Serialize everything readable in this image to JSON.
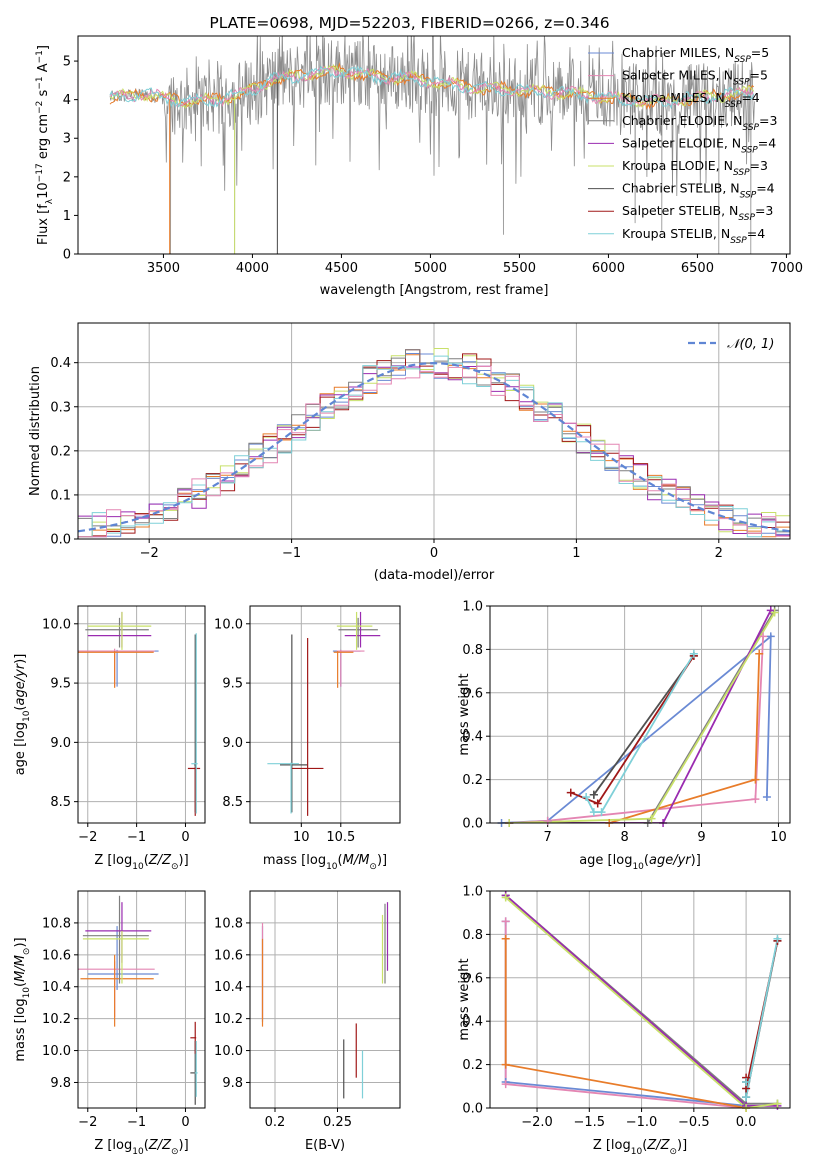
{
  "figure_title": "PLATE=0698, MJD=52203, FIBERID=0266, z=0.346",
  "colors": {
    "Chabrier MILES": "#6a8ad4",
    "Salpeter MILES": "#e486b3",
    "Kroupa MILES": "#e87c2a",
    "Chabrier ELODIE": "#7f7f7f",
    "Salpeter ELODIE": "#9a2bb0",
    "Kroupa ELODIE": "#c8e06a",
    "Chabrier STELIB": "#505050",
    "Salpeter STELIB": "#a01818",
    "Kroupa STELIB": "#7fd0d8",
    "normal": "#5f86d4",
    "grid": "#b0b0b0"
  },
  "chart_data": [
    {
      "type": "line",
      "title": "PLATE=0698, MJD=52203, FIBERID=0266, z=0.346",
      "xlabel": "wavelength [Angstrom, rest frame]",
      "ylabel": "Flux [fλ 10^-17 erg cm^-2 s^-1 A^-1]",
      "xlim": [
        3020,
        7020
      ],
      "ylim": [
        0,
        5.65
      ],
      "xticks": [
        3500,
        4000,
        4500,
        5000,
        5500,
        6000,
        6500,
        7000
      ],
      "yticks": [
        0,
        1,
        2,
        3,
        4,
        5
      ],
      "grid": false,
      "legend_position": "top-right",
      "series": [
        {
          "name": "Chabrier MILES, N_SSP=5"
        },
        {
          "name": "Salpeter MILES, N_SSP=5"
        },
        {
          "name": "Kroupa MILES, N_SSP=4"
        },
        {
          "name": "Chabrier ELODIE, N_SSP=3"
        },
        {
          "name": "Salpeter ELODIE, N_SSP=4"
        },
        {
          "name": "Kroupa ELODIE, N_SSP=3"
        },
        {
          "name": "Chabrier STELIB, N_SSP=4"
        },
        {
          "name": "Salpeter STELIB, N_SSP=3"
        },
        {
          "name": "Kroupa STELIB, N_SSP=4"
        }
      ],
      "data_range_x": [
        3200,
        6820
      ],
      "continuum": [
        [
          3200,
          4.05
        ],
        [
          3400,
          4.15
        ],
        [
          3600,
          3.95
        ],
        [
          3800,
          4.0
        ],
        [
          3950,
          4.15
        ],
        [
          4100,
          4.5
        ],
        [
          4300,
          4.65
        ],
        [
          4500,
          4.75
        ],
        [
          4700,
          4.6
        ],
        [
          4900,
          4.55
        ],
        [
          5100,
          4.4
        ],
        [
          5300,
          4.3
        ],
        [
          5500,
          4.25
        ],
        [
          5700,
          4.2
        ],
        [
          5900,
          4.1
        ],
        [
          6100,
          4.0
        ],
        [
          6300,
          3.95
        ],
        [
          6500,
          4.05
        ],
        [
          6700,
          4.15
        ],
        [
          6820,
          4.2
        ]
      ],
      "deep_spikes": [
        [
          3540,
          0
        ],
        [
          3900,
          0
        ],
        [
          4140,
          0
        ],
        [
          5410,
          0.5
        ],
        [
          6150,
          0.8
        ],
        [
          6300,
          0.6
        ],
        [
          6620,
          0
        ],
        [
          6800,
          0
        ]
      ]
    },
    {
      "type": "bar",
      "xlabel": "(data-model)/error",
      "ylabel": "Normed distribution",
      "xlim": [
        -2.5,
        2.5
      ],
      "ylim": [
        0,
        0.49
      ],
      "xticks": [
        -2,
        -1,
        0,
        1,
        2
      ],
      "yticks": [
        0.0,
        0.1,
        0.2,
        0.3,
        0.4
      ],
      "grid": true,
      "legend_position": "top-right",
      "legend": "𝒩(0, 1)",
      "reference_curve": "normal(0,1)",
      "bin_width": 0.1
    },
    {
      "type": "scatter",
      "xlabel": "Z [log10(Z/Z⊙)]",
      "ylabel": "age  [log10(age/yr)]",
      "xlim": [
        -2.2,
        0.4
      ],
      "ylim": [
        8.32,
        10.15
      ],
      "xticks": [
        -2,
        -1,
        0
      ],
      "yticks": [
        8.5,
        9.0,
        9.5,
        10.0
      ],
      "grid": true,
      "points": [
        {
          "s": "Chabrier MILES",
          "x": -1.4,
          "xerr": [
            0.8,
            0.85
          ],
          "y": 9.77,
          "yerr": [
            0.3,
            0.01
          ]
        },
        {
          "s": "Salpeter MILES",
          "x": -1.45,
          "xerr": [
            0.8,
            0.82
          ],
          "y": 9.77,
          "yerr": [
            0.3,
            0.02
          ]
        },
        {
          "s": "Kroupa MILES",
          "x": -1.45,
          "xerr": [
            0.75,
            0.8
          ],
          "y": 9.76,
          "yerr": [
            0.3,
            0.01
          ]
        },
        {
          "s": "Chabrier ELODIE",
          "x": -1.35,
          "xerr": [
            0.7,
            0.6
          ],
          "y": 9.95,
          "yerr": [
            0.15,
            0.1
          ]
        },
        {
          "s": "Salpeter ELODIE",
          "x": -1.3,
          "xerr": [
            0.7,
            0.6
          ],
          "y": 9.9,
          "yerr": [
            0.1,
            0.2
          ]
        },
        {
          "s": "Kroupa ELODIE",
          "x": -1.3,
          "xerr": [
            0.7,
            0.6
          ],
          "y": 9.98,
          "yerr": [
            0.2,
            0.12
          ]
        },
        {
          "s": "Chabrier STELIB",
          "x": 0.2,
          "xerr": [
            0.02,
            0.02
          ],
          "y": 8.81,
          "yerr": [
            0.4,
            1.1
          ]
        },
        {
          "s": "Salpeter STELIB",
          "x": 0.2,
          "xerr": [
            0.15,
            0.1
          ],
          "y": 8.78,
          "yerr": [
            0.4,
            0.01
          ]
        },
        {
          "s": "Kroupa STELIB",
          "x": 0.22,
          "xerr": [
            0.1,
            0.03
          ],
          "y": 8.82,
          "yerr": [
            0.42,
            1.1
          ]
        }
      ]
    },
    {
      "type": "scatter",
      "xlabel": "mass [log10(M/M⊙)]",
      "ylabel": "",
      "xlim": [
        9.35,
        11.25
      ],
      "ylim": [
        8.32,
        10.15
      ],
      "xticks": [
        10.0,
        10.5
      ],
      "yticks": [
        8.5,
        9.0,
        9.5,
        10.0
      ],
      "grid": true,
      "points": [
        {
          "s": "Chabrier MILES",
          "x": 10.5,
          "xerr": [
            0.1,
            0.25
          ],
          "y": 9.77,
          "yerr": [
            0.3,
            0.01
          ]
        },
        {
          "s": "Salpeter MILES",
          "x": 10.5,
          "xerr": [
            0.05,
            0.3
          ],
          "y": 9.77,
          "yerr": [
            0.3,
            0.01
          ]
        },
        {
          "s": "Kroupa MILES",
          "x": 10.46,
          "xerr": [
            0.05,
            0.2
          ],
          "y": 9.76,
          "yerr": [
            0.3,
            0.01
          ]
        },
        {
          "s": "Chabrier ELODIE",
          "x": 10.72,
          "xerr": [
            0.25,
            0.25
          ],
          "y": 9.95,
          "yerr": [
            0.15,
            0.1
          ]
        },
        {
          "s": "Salpeter ELODIE",
          "x": 10.75,
          "xerr": [
            0.2,
            0.25
          ],
          "y": 9.9,
          "yerr": [
            0.1,
            0.2
          ]
        },
        {
          "s": "Kroupa ELODIE",
          "x": 10.7,
          "xerr": [
            0.25,
            0.2
          ],
          "y": 9.98,
          "yerr": [
            0.2,
            0.12
          ]
        },
        {
          "s": "Chabrier STELIB",
          "x": 9.88,
          "xerr": [
            0.15,
            0.2
          ],
          "y": 8.81,
          "yerr": [
            0.4,
            1.1
          ]
        },
        {
          "s": "Salpeter STELIB",
          "x": 10.08,
          "xerr": [
            0.2,
            0.2
          ],
          "y": 8.78,
          "yerr": [
            0.4,
            1.1
          ]
        },
        {
          "s": "Kroupa STELIB",
          "x": 9.87,
          "xerr": [
            0.3,
            0.1
          ],
          "y": 8.82,
          "yerr": [
            0.42,
            0.01
          ]
        }
      ]
    },
    {
      "type": "line",
      "xlabel": "age  [log10(age/yr)]",
      "ylabel": "mass weight",
      "xlim": [
        6.25,
        10.15
      ],
      "ylim": [
        0,
        1.0
      ],
      "xticks": [
        7,
        8,
        9,
        10
      ],
      "yticks": [
        0.0,
        0.2,
        0.4,
        0.6,
        0.8,
        1.0
      ],
      "grid": true,
      "series": [
        {
          "s": "Chabrier MILES",
          "x": [
            6.4,
            7.0,
            9.9,
            9.85
          ],
          "y": [
            0.0,
            0.01,
            0.86,
            0.12
          ]
        },
        {
          "s": "Salpeter MILES",
          "x": [
            6.5,
            7.0,
            9.7,
            9.8
          ],
          "y": [
            0.0,
            0.01,
            0.11,
            0.86
          ]
        },
        {
          "s": "Kroupa MILES",
          "x": [
            6.5,
            7.8,
            9.7,
            9.75
          ],
          "y": [
            0.0,
            0.0,
            0.2,
            0.78
          ]
        },
        {
          "s": "Chabrier ELODIE",
          "x": [
            6.5,
            8.3,
            9.95
          ],
          "y": [
            0.0,
            0.0,
            0.98
          ]
        },
        {
          "s": "Salpeter ELODIE",
          "x": [
            6.5,
            8.5,
            9.9
          ],
          "y": [
            0.0,
            0.0,
            0.98
          ]
        },
        {
          "s": "Kroupa ELODIE",
          "x": [
            6.5,
            8.35,
            9.95
          ],
          "y": [
            0.0,
            0.02,
            0.97
          ]
        },
        {
          "s": "Chabrier STELIB",
          "x": [
            7.6,
            7.6,
            8.9
          ],
          "y": [
            0.13,
            0.13,
            0.77
          ]
        },
        {
          "s": "Salpeter STELIB",
          "x": [
            7.3,
            7.65,
            8.9
          ],
          "y": [
            0.14,
            0.09,
            0.77
          ]
        },
        {
          "s": "Kroupa STELIB",
          "x": [
            7.5,
            7.6,
            7.7,
            8.9
          ],
          "y": [
            0.12,
            0.05,
            0.05,
            0.78
          ]
        }
      ]
    },
    {
      "type": "scatter",
      "xlabel": "Z [log10(Z/Z⊙)]",
      "ylabel": "mass [log10(M/M⊙)]",
      "xlim": [
        -2.2,
        0.4
      ],
      "ylim": [
        9.64,
        11.0
      ],
      "xticks": [
        -2,
        -1,
        0
      ],
      "yticks": [
        9.8,
        10.0,
        10.2,
        10.4,
        10.6,
        10.8
      ],
      "grid": true,
      "points": [
        {
          "s": "Chabrier MILES",
          "x": -1.4,
          "xerr": [
            0.6,
            0.85
          ],
          "y": 10.48,
          "yerr": [
            0.1,
            0.3
          ]
        },
        {
          "s": "Salpeter MILES",
          "x": -1.45,
          "xerr": [
            0.8,
            0.82
          ],
          "y": 10.51,
          "yerr": [
            0.3,
            0.05
          ]
        },
        {
          "s": "Kroupa MILES",
          "x": -1.45,
          "xerr": [
            0.7,
            0.8
          ],
          "y": 10.45,
          "yerr": [
            0.3,
            0.15
          ]
        },
        {
          "s": "Chabrier ELODIE",
          "x": -1.35,
          "xerr": [
            0.75,
            0.6
          ],
          "y": 10.72,
          "yerr": [
            0.3,
            0.25
          ]
        },
        {
          "s": "Salpeter ELODIE",
          "x": -1.3,
          "xerr": [
            0.75,
            0.6
          ],
          "y": 10.75,
          "yerr": [
            0.2,
            0.18
          ]
        },
        {
          "s": "Kroupa ELODIE",
          "x": -1.3,
          "xerr": [
            0.8,
            0.55
          ],
          "y": 10.7,
          "yerr": [
            0.28,
            0.05
          ]
        },
        {
          "s": "Chabrier STELIB",
          "x": 0.2,
          "xerr": [
            0.1,
            0.02
          ],
          "y": 9.86,
          "yerr": [
            0.2,
            0.2
          ]
        },
        {
          "s": "Salpeter STELIB",
          "x": 0.2,
          "xerr": [
            0.1,
            0.02
          ],
          "y": 10.08,
          "yerr": [
            0.1,
            0.1
          ]
        },
        {
          "s": "Kroupa STELIB",
          "x": 0.22,
          "xerr": [
            0.03,
            0.03
          ],
          "y": 9.86,
          "yerr": [
            0.15,
            0.2
          ]
        }
      ]
    },
    {
      "type": "scatter",
      "xlabel": "E(B-V)",
      "ylabel": "",
      "xlim": [
        0.18,
        0.3
      ],
      "ylim": [
        9.64,
        11.0
      ],
      "xticks": [
        0.2,
        0.25
      ],
      "yticks": [
        9.8,
        10.0,
        10.2,
        10.4,
        10.6,
        10.8
      ],
      "grid": true,
      "points": [
        {
          "s": "Chabrier MILES",
          "x": 0.19,
          "y": 10.48,
          "yerr": [
            0.3,
            0.3
          ]
        },
        {
          "s": "Salpeter MILES",
          "x": 0.19,
          "y": 10.5,
          "yerr": [
            0.3,
            0.3
          ]
        },
        {
          "s": "Kroupa MILES",
          "x": 0.19,
          "y": 10.45,
          "yerr": [
            0.3,
            0.25
          ]
        },
        {
          "s": "Chabrier ELODIE",
          "x": 0.288,
          "y": 10.72,
          "yerr": [
            0.3,
            0.2
          ]
        },
        {
          "s": "Salpeter ELODIE",
          "x": 0.29,
          "y": 10.75,
          "yerr": [
            0.25,
            0.18
          ]
        },
        {
          "s": "Kroupa ELODIE",
          "x": 0.286,
          "y": 10.7,
          "yerr": [
            0.28,
            0.15
          ]
        },
        {
          "s": "Chabrier STELIB",
          "x": 0.255,
          "y": 9.9,
          "yerr": [
            0.2,
            0.17
          ]
        },
        {
          "s": "Salpeter STELIB",
          "x": 0.265,
          "y": 10.0,
          "yerr": [
            0.17,
            0.17
          ]
        },
        {
          "s": "Kroupa STELIB",
          "x": 0.27,
          "y": 9.85,
          "yerr": [
            0.15,
            0.15
          ]
        }
      ]
    },
    {
      "type": "line",
      "xlabel": "Z [log10(Z/Z⊙)]",
      "ylabel": "mass weight",
      "xlim": [
        -2.45,
        0.42
      ],
      "ylim": [
        0,
        1.0
      ],
      "xticks": [
        -2.0,
        -1.5,
        -1.0,
        -0.5,
        0.0
      ],
      "yticks": [
        0.0,
        0.2,
        0.4,
        0.6,
        0.8,
        1.0
      ],
      "grid": true,
      "series": [
        {
          "s": "Chabrier MILES",
          "x": [
            -2.3,
            -2.3,
            0.0
          ],
          "y": [
            0.86,
            0.12,
            0.01
          ]
        },
        {
          "s": "Salpeter MILES",
          "x": [
            -2.3,
            -2.3,
            0.0
          ],
          "y": [
            0.86,
            0.11,
            0.0
          ]
        },
        {
          "s": "Kroupa MILES",
          "x": [
            -2.3,
            -2.3,
            0.0
          ],
          "y": [
            0.78,
            0.2,
            0.0
          ]
        },
        {
          "s": "Chabrier ELODIE",
          "x": [
            -2.3,
            0.0,
            0.3
          ],
          "y": [
            0.98,
            0.02,
            0.02
          ]
        },
        {
          "s": "Salpeter ELODIE",
          "x": [
            -2.3,
            0.0,
            0.3
          ],
          "y": [
            0.98,
            0.01,
            0.01
          ]
        },
        {
          "s": "Kroupa ELODIE",
          "x": [
            -2.3,
            0.0,
            0.3
          ],
          "y": [
            0.97,
            0.0,
            0.02
          ]
        },
        {
          "s": "Chabrier STELIB",
          "x": [
            0.0,
            0.0,
            0.3
          ],
          "y": [
            0.12,
            0.05,
            0.77
          ]
        },
        {
          "s": "Salpeter STELIB",
          "x": [
            0.0,
            0.0,
            0.3
          ],
          "y": [
            0.14,
            0.09,
            0.77
          ]
        },
        {
          "s": "Kroupa STELIB",
          "x": [
            0.0,
            0.0,
            0.3
          ],
          "y": [
            0.12,
            0.05,
            0.78
          ]
        }
      ]
    }
  ]
}
